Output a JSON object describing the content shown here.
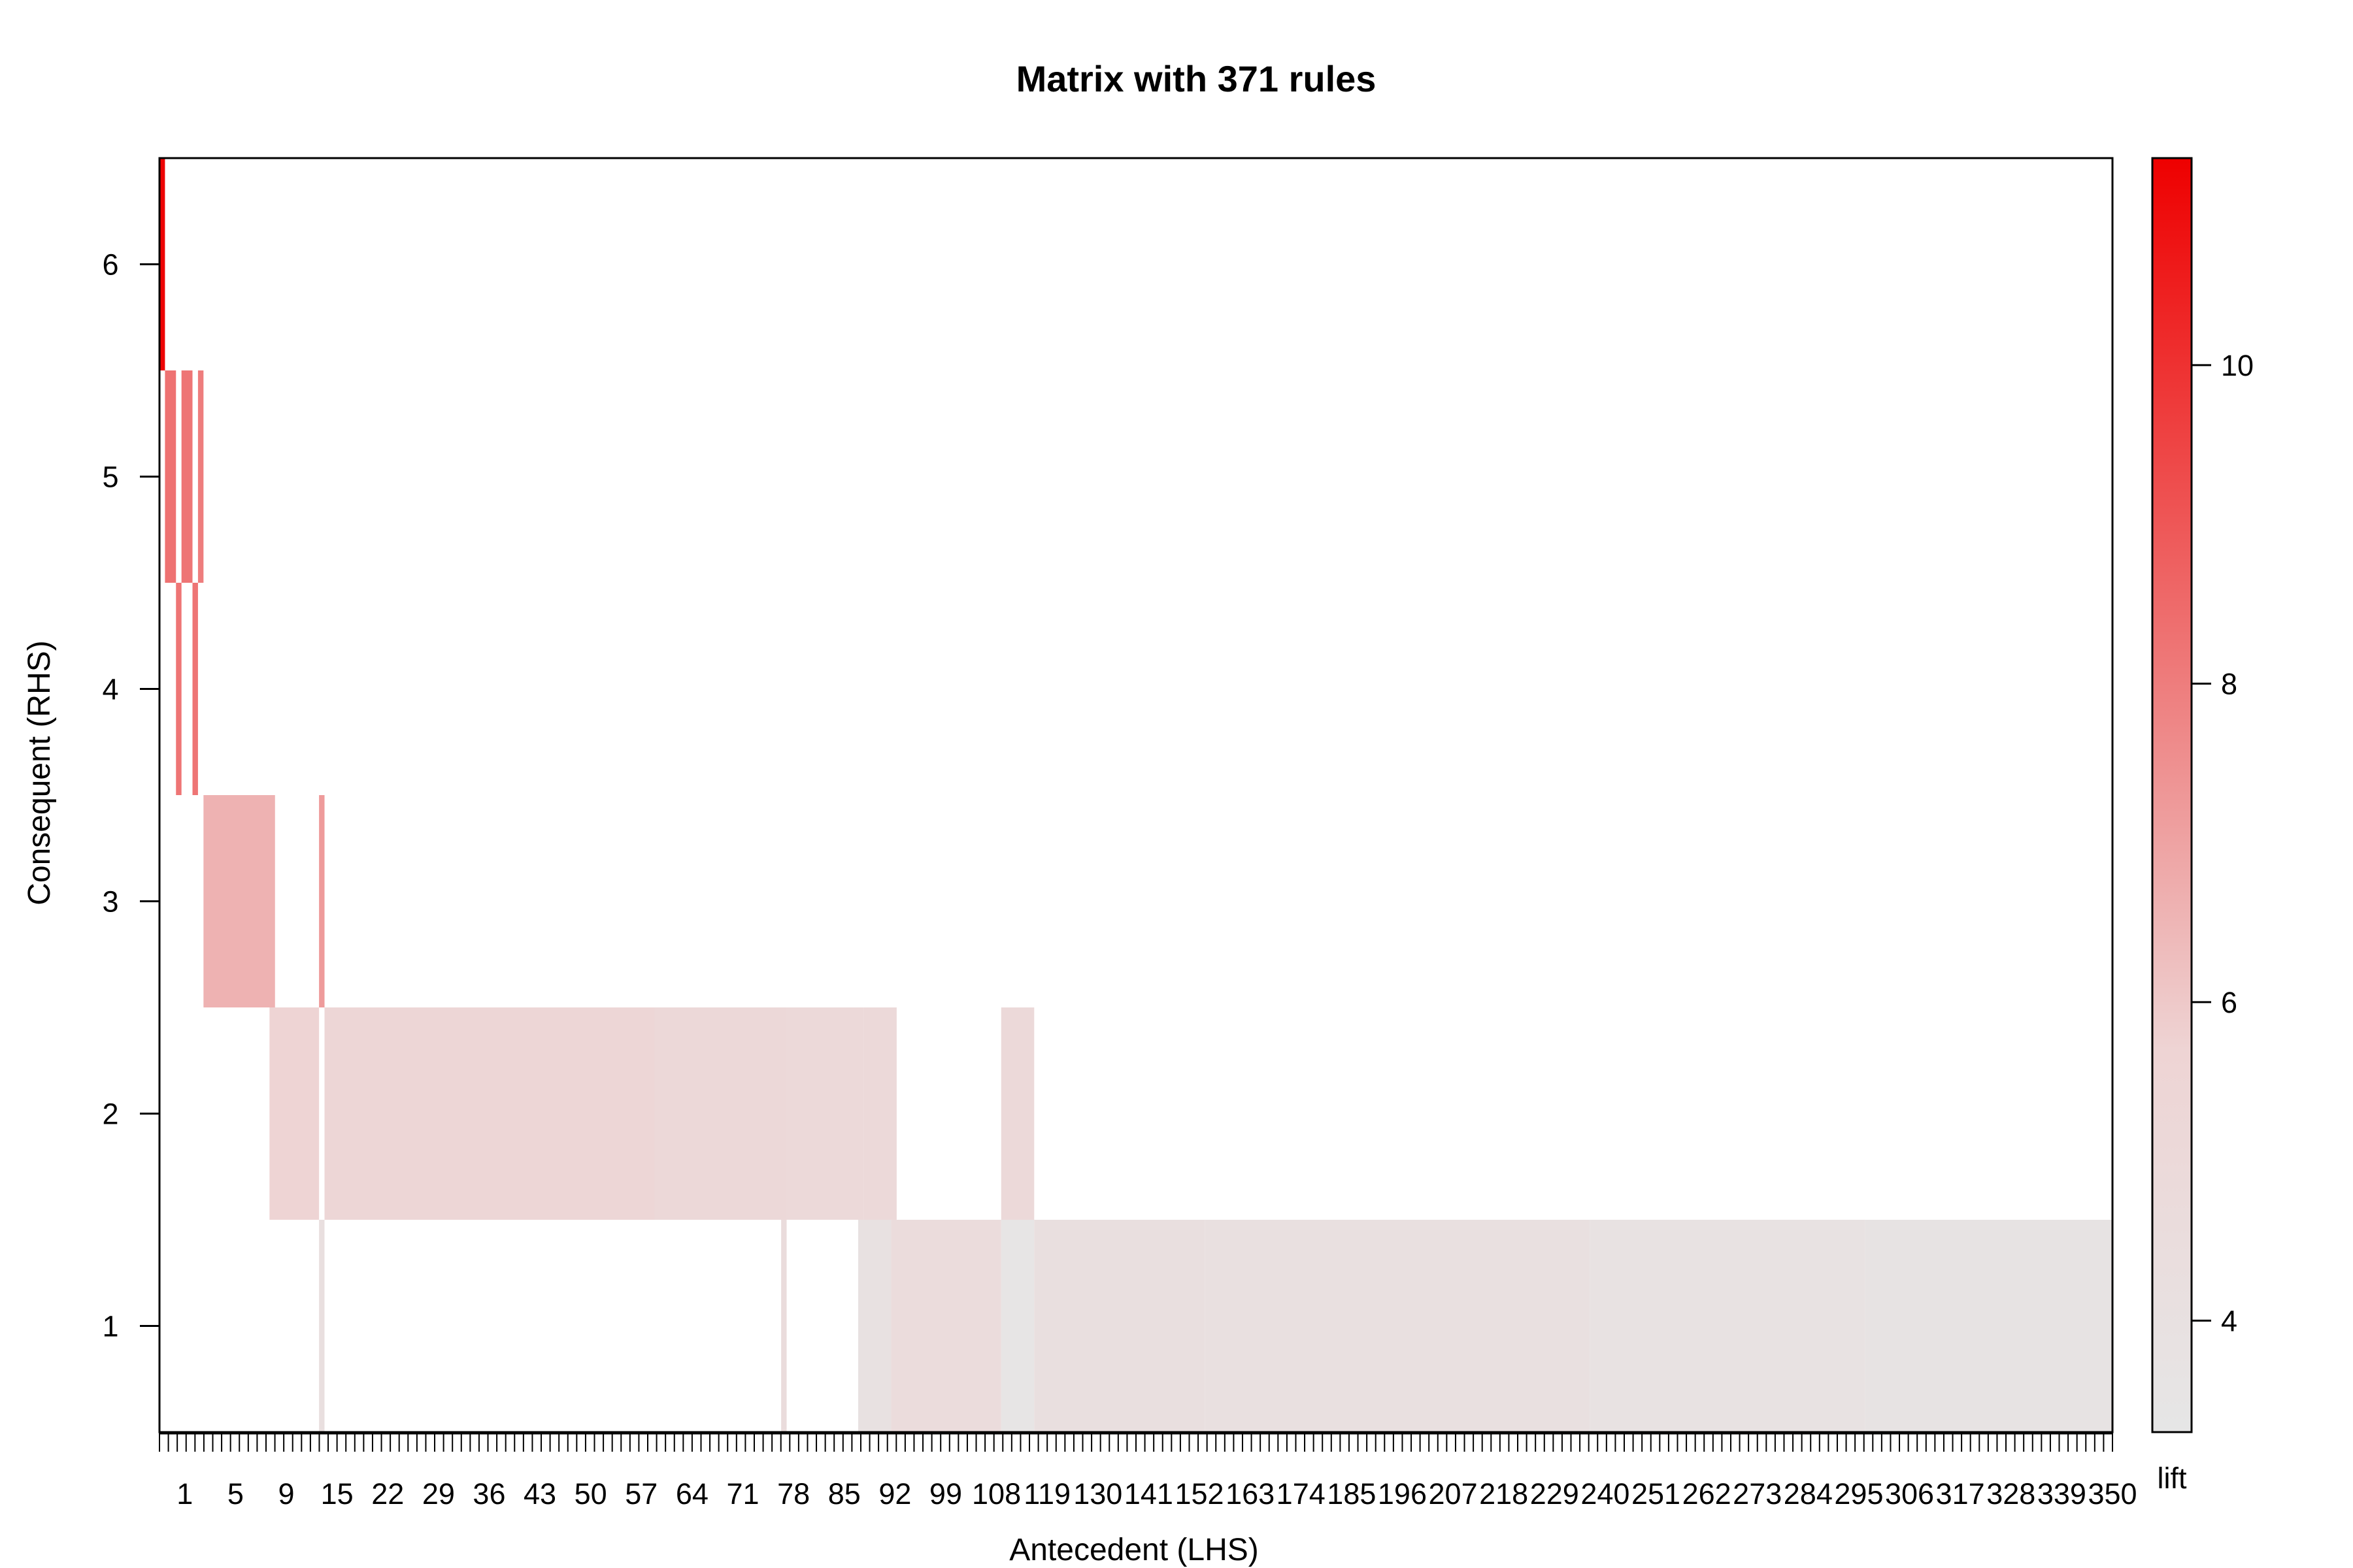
{
  "chart_data": {
    "type": "heatmap",
    "title": "Matrix with 371 rules",
    "xlabel": "Antecedent (LHS)",
    "ylabel": "Consequent (RHS)",
    "legend_label": "lift",
    "n_antecedents": 355,
    "x_tick_labels": [
      "1",
      "5",
      "9",
      "15",
      "22",
      "29",
      "36",
      "43",
      "50",
      "57",
      "64",
      "71",
      "78",
      "85",
      "92",
      "99",
      "108",
      "119",
      "130",
      "141",
      "152",
      "163",
      "174",
      "185",
      "196",
      "207",
      "218",
      "229",
      "240",
      "251",
      "262",
      "273",
      "284",
      "295",
      "306",
      "317",
      "328",
      "339",
      "350"
    ],
    "y_ticks": [
      1,
      2,
      3,
      4,
      5,
      6
    ],
    "ylim": [
      0.5,
      6.5
    ],
    "colorbar": {
      "min": 3.3,
      "max": 11.3,
      "ticks": [
        4,
        6,
        8,
        10
      ],
      "low_color": "#e6e6e6",
      "high_color": "#ee0000",
      "placement": "right"
    },
    "cells": [
      {
        "rhs": 6,
        "x_from": 1,
        "x_to": 1,
        "lift": 11.2
      },
      {
        "rhs": 5,
        "x_from": 2,
        "x_to": 3,
        "lift": 8.3
      },
      {
        "rhs": 5,
        "x_from": 5,
        "x_to": 6,
        "lift": 8.2
      },
      {
        "rhs": 5,
        "x_from": 8,
        "x_to": 8,
        "lift": 8.0
      },
      {
        "rhs": 4,
        "x_from": 4,
        "x_to": 4,
        "lift": 8.2
      },
      {
        "rhs": 4,
        "x_from": 7,
        "x_to": 7,
        "lift": 8.2
      },
      {
        "rhs": 3,
        "x_from": 9,
        "x_to": 21,
        "lift": 6.6
      },
      {
        "rhs": 3,
        "x_from": 30,
        "x_to": 30,
        "lift": 7.2
      },
      {
        "rhs": 2,
        "x_from": 21,
        "x_to": 29,
        "lift": 5.7
      },
      {
        "rhs": 2,
        "x_from": 31,
        "x_to": 90,
        "lift": 5.4
      },
      {
        "rhs": 2,
        "x_from": 91,
        "x_to": 114,
        "lift": 5.2
      },
      {
        "rhs": 2,
        "x_from": 115,
        "x_to": 128,
        "lift": 5.0
      },
      {
        "rhs": 2,
        "x_from": 129,
        "x_to": 134,
        "lift": 5.0
      },
      {
        "rhs": 2,
        "x_from": 154,
        "x_to": 159,
        "lift": 5.0
      },
      {
        "rhs": 1,
        "x_from": 30,
        "x_to": 30,
        "lift": 4.2
      },
      {
        "rhs": 1,
        "x_from": 114,
        "x_to": 114,
        "lift": 4.6
      },
      {
        "rhs": 1,
        "x_from": 128,
        "x_to": 133,
        "lift": 4.0
      },
      {
        "rhs": 1,
        "x_from": 134,
        "x_to": 153,
        "lift": 4.7
      },
      {
        "rhs": 1,
        "x_from": 154,
        "x_to": 159,
        "lift": 3.5
      },
      {
        "rhs": 1,
        "x_from": 160,
        "x_to": 190,
        "lift": 4.3
      },
      {
        "rhs": 1,
        "x_from": 191,
        "x_to": 260,
        "lift": 4.1
      },
      {
        "rhs": 1,
        "x_from": 261,
        "x_to": 310,
        "lift": 3.9
      },
      {
        "rhs": 1,
        "x_from": 311,
        "x_to": 355,
        "lift": 3.7
      }
    ]
  }
}
